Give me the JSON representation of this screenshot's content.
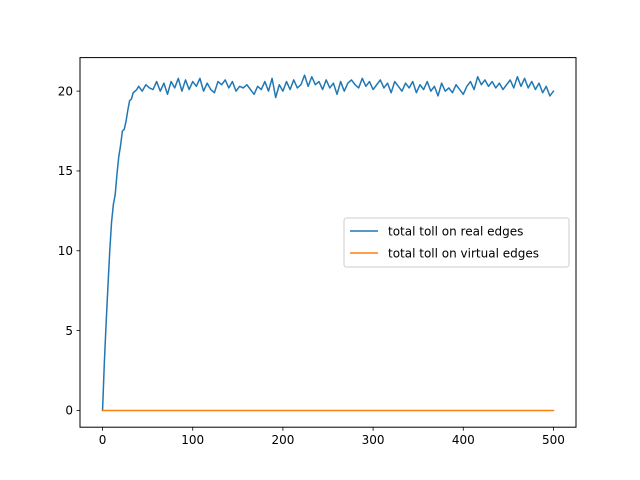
{
  "chart_data": {
    "type": "line",
    "title": "",
    "xlabel": "",
    "ylabel": "",
    "xlim": [
      -25,
      525
    ],
    "ylim": [
      -1.05,
      22.1
    ],
    "xticks": [
      0,
      100,
      200,
      300,
      400,
      500
    ],
    "yticks": [
      0,
      5,
      10,
      15,
      20
    ],
    "grid": false,
    "legend": {
      "placement": "center-right"
    },
    "series": [
      {
        "name": "total toll on real edges",
        "color": "#1f77b4",
        "x": [
          0,
          1,
          2,
          4,
          6,
          8,
          10,
          12,
          14,
          16,
          18,
          20,
          22,
          24,
          26,
          28,
          30,
          32,
          34,
          36,
          38,
          40,
          44,
          48,
          52,
          56,
          60,
          64,
          68,
          72,
          76,
          80,
          84,
          88,
          92,
          96,
          100,
          104,
          108,
          112,
          116,
          120,
          124,
          128,
          132,
          136,
          140,
          144,
          148,
          152,
          156,
          160,
          164,
          168,
          172,
          176,
          180,
          184,
          188,
          192,
          196,
          200,
          204,
          208,
          212,
          216,
          220,
          224,
          228,
          232,
          236,
          240,
          244,
          248,
          252,
          256,
          260,
          264,
          268,
          272,
          276,
          280,
          284,
          288,
          292,
          296,
          300,
          304,
          308,
          312,
          316,
          320,
          324,
          328,
          332,
          336,
          340,
          344,
          348,
          352,
          356,
          360,
          364,
          368,
          372,
          376,
          380,
          384,
          388,
          392,
          396,
          400,
          404,
          408,
          412,
          416,
          420,
          424,
          428,
          432,
          436,
          440,
          444,
          448,
          452,
          456,
          460,
          464,
          468,
          472,
          476,
          480,
          484,
          488,
          492,
          496,
          500
        ],
        "values": [
          0.0,
          1.5,
          3.0,
          5.5,
          7.8,
          10.0,
          11.8,
          12.9,
          13.5,
          14.8,
          15.9,
          16.6,
          17.5,
          17.6,
          18.1,
          18.8,
          19.4,
          19.5,
          19.9,
          20.0,
          20.1,
          20.3,
          20.0,
          20.4,
          20.2,
          20.1,
          20.6,
          20.0,
          20.5,
          19.8,
          20.6,
          20.2,
          20.8,
          20.0,
          20.7,
          20.1,
          20.6,
          20.3,
          20.8,
          20.0,
          20.5,
          20.1,
          19.9,
          20.6,
          20.4,
          20.7,
          20.2,
          20.6,
          20.0,
          20.3,
          20.2,
          20.4,
          20.1,
          19.8,
          20.3,
          20.1,
          20.6,
          20.0,
          20.8,
          19.6,
          20.4,
          20.0,
          20.6,
          20.1,
          20.7,
          20.2,
          20.4,
          21.0,
          20.3,
          20.9,
          20.4,
          20.6,
          20.1,
          20.7,
          20.2,
          20.5,
          19.8,
          20.6,
          20.0,
          20.5,
          20.7,
          20.4,
          20.2,
          20.8,
          20.3,
          20.6,
          20.1,
          20.4,
          20.7,
          20.2,
          20.5,
          19.9,
          20.6,
          20.3,
          20.0,
          20.5,
          20.2,
          20.6,
          19.9,
          20.4,
          20.1,
          20.6,
          20.0,
          20.3,
          19.7,
          20.5,
          20.0,
          20.2,
          19.9,
          20.4,
          20.1,
          19.8,
          20.3,
          20.6,
          20.1,
          20.9,
          20.4,
          20.7,
          20.3,
          20.6,
          20.2,
          20.5,
          20.1,
          20.4,
          20.7,
          20.2,
          20.9,
          20.3,
          20.8,
          20.2,
          20.6,
          20.1,
          20.5,
          19.9,
          20.3,
          19.7,
          20.0
        ]
      },
      {
        "name": "total toll on virtual edges",
        "color": "#ff7f0e",
        "x": [
          0,
          500
        ],
        "values": [
          0.0,
          0.0
        ]
      }
    ]
  }
}
